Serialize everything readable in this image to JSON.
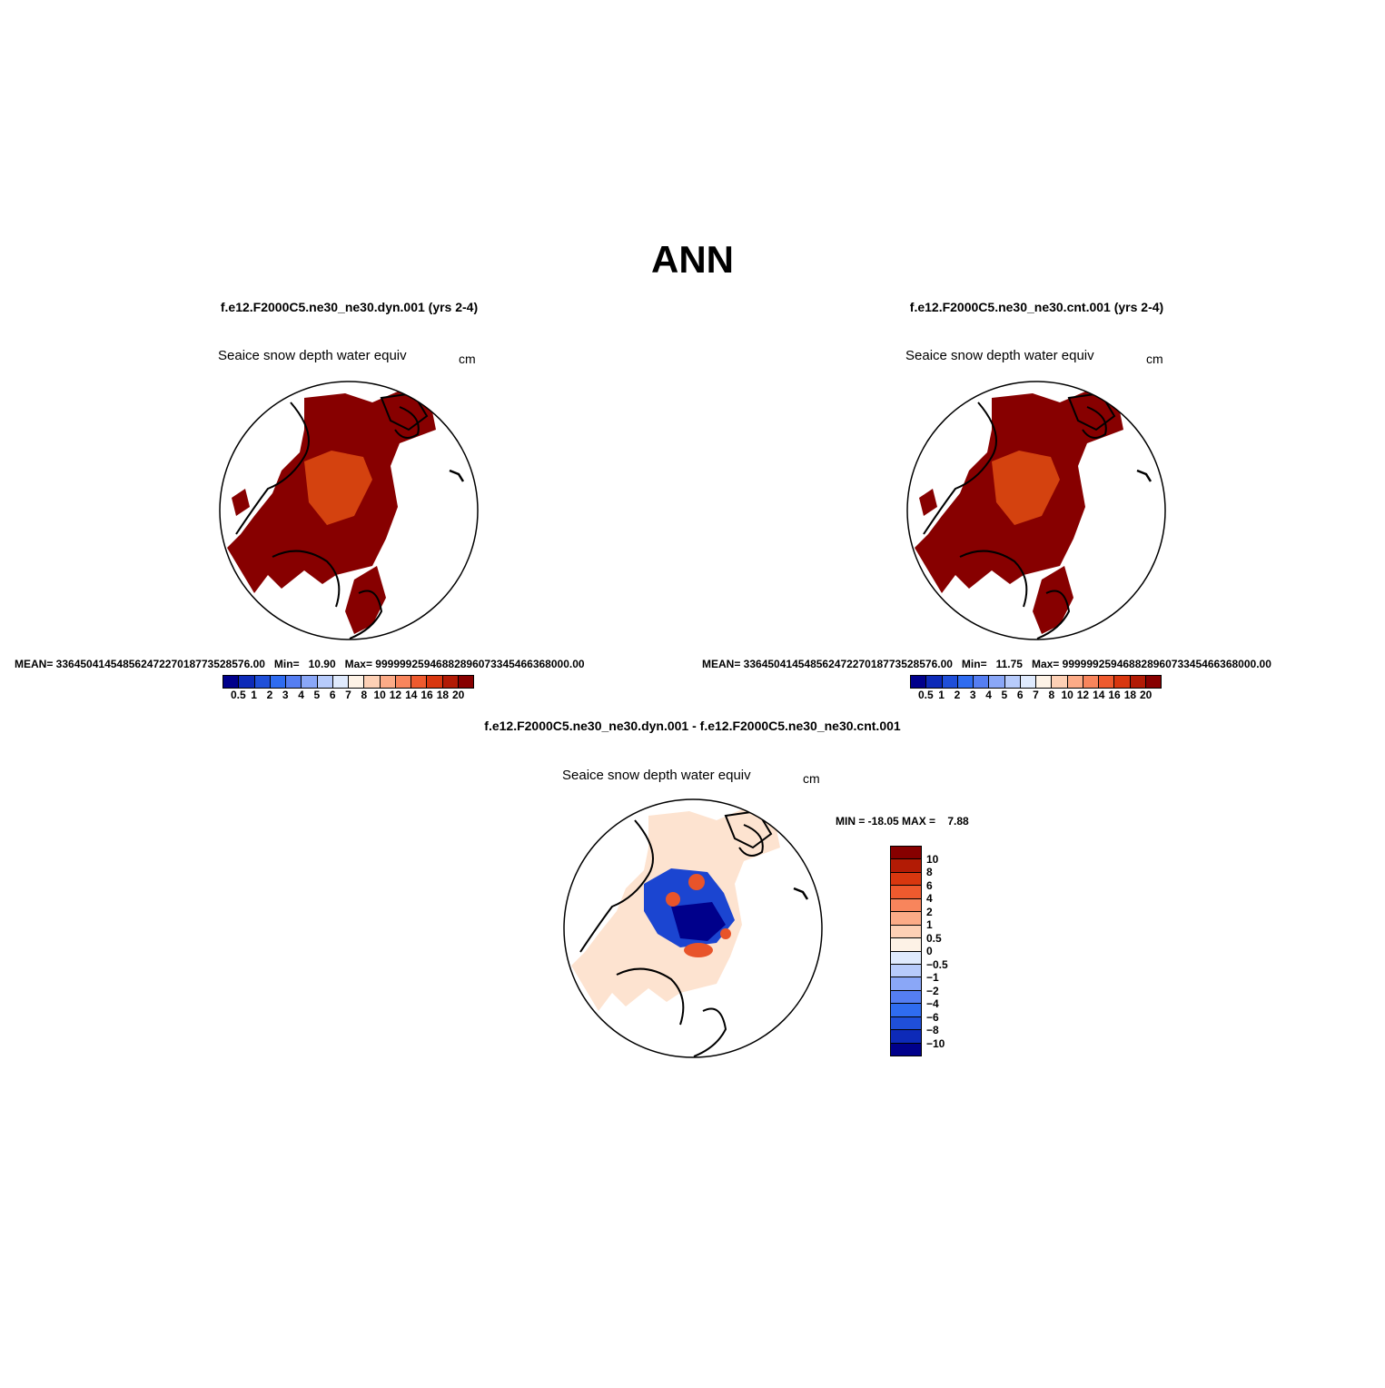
{
  "title": "ANN",
  "panels": {
    "left": {
      "case": "f.e12.F2000C5.ne30_ne30.dyn.001 (yrs 2-4)",
      "variable": "Seaice snow depth water equiv",
      "units": "cm",
      "stats": "MEAN= 33645041454856247227018773528576.00   Min=   10.90   Max= 99999925946882896073345466368000.00"
    },
    "right": {
      "case": "f.e12.F2000C5.ne30_ne30.cnt.001 (yrs 2-4)",
      "variable": "Seaice snow depth water equiv",
      "units": "cm",
      "stats": "MEAN= 33645041454856247227018773528576.00   Min=   11.75   Max= 99999925946882896073345466368000.00"
    },
    "diff": {
      "case": "f.e12.F2000C5.ne30_ne30.dyn.001 - f.e12.F2000C5.ne30_ne30.cnt.001",
      "variable": "Seaice snow depth water equiv",
      "units": "cm",
      "stats": "MIN = -18.05 MAX =    7.88"
    }
  },
  "colorbar_main": {
    "colors": [
      "#00008b",
      "#0d2ab8",
      "#1f4fd9",
      "#2f6cf0",
      "#557ef2",
      "#8aa7f7",
      "#b7cbfb",
      "#dfeafd",
      "#fdf2e6",
      "#fdd0b5",
      "#fcab87",
      "#f8855c",
      "#ee5a2e",
      "#d8370f",
      "#b21b05",
      "#870000"
    ],
    "labels": [
      "0.5",
      "1",
      "2",
      "3",
      "4",
      "5",
      "6",
      "7",
      "8",
      "10",
      "12",
      "14",
      "16",
      "18",
      "20"
    ]
  },
  "colorbar_diff": {
    "colors": [
      "#870000",
      "#b21b05",
      "#d8370f",
      "#ee5a2e",
      "#f8855c",
      "#fcab87",
      "#fdd0b5",
      "#fdf2e6",
      "#dfeafd",
      "#b7cbfb",
      "#8aa7f7",
      "#557ef2",
      "#2f6cf0",
      "#1f4fd9",
      "#0d2ab8",
      "#00008b"
    ],
    "labels": [
      "10",
      "8",
      "6",
      "4",
      "2",
      "1",
      "0.5",
      "0",
      "−0.5",
      "−1",
      "−2",
      "−4",
      "−6",
      "−8",
      "−10"
    ]
  },
  "colors": {
    "ice_dark": "#870000",
    "ice_mid": "#c93a12",
    "ice_pale": "#fde3d0",
    "diff_blue": "#1b45d1",
    "diff_red": "#e8542a"
  }
}
